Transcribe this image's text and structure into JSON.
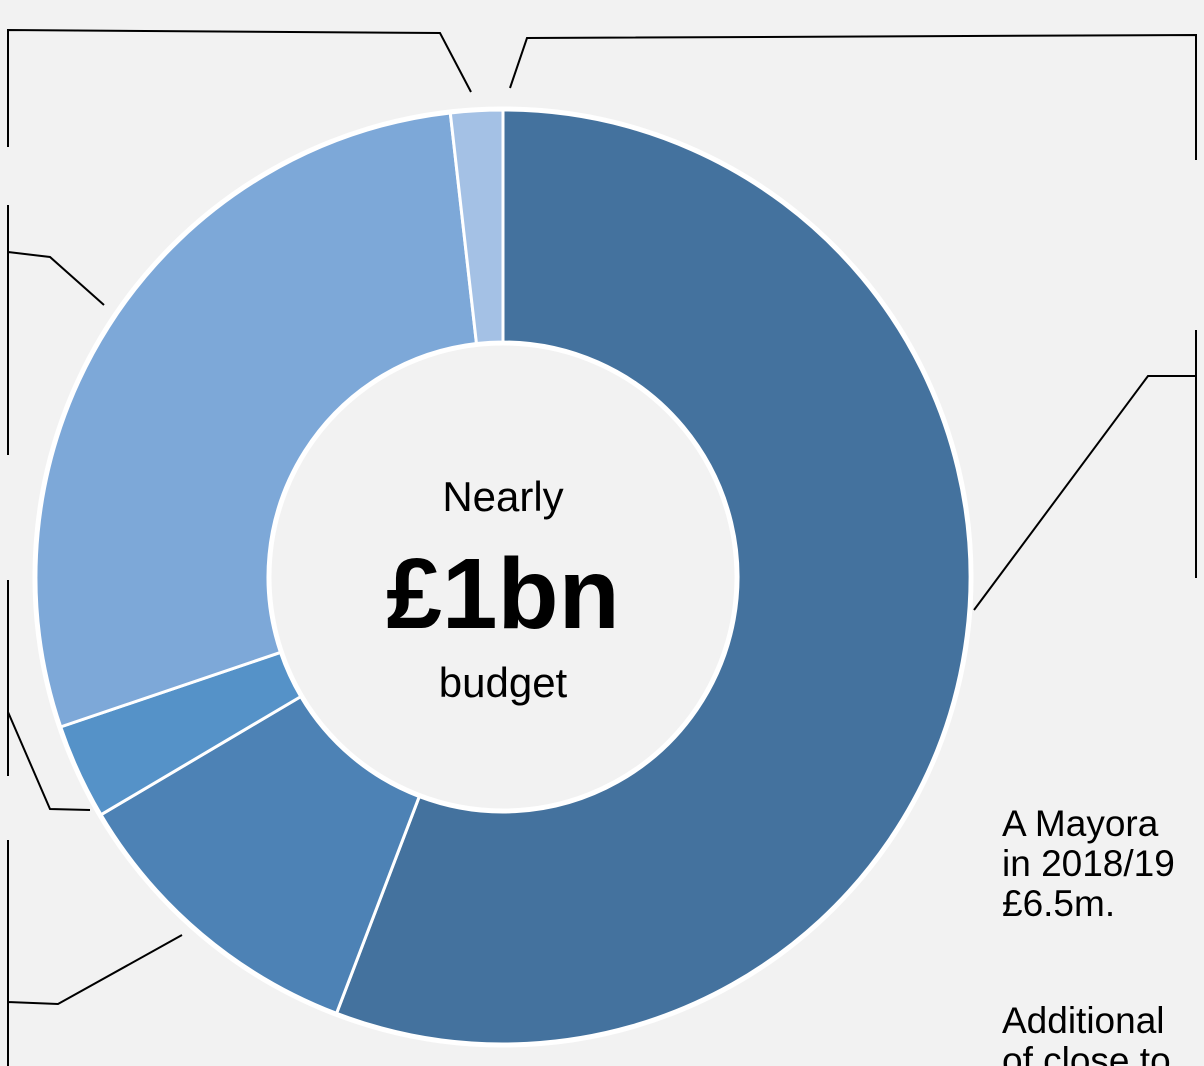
{
  "chart_data": {
    "type": "pie",
    "donut": true,
    "start": "top, clockwise",
    "center_label": {
      "line1": "Nearly",
      "line2": "£1bn",
      "line3": "budget"
    },
    "slices": [
      {
        "value": 55.8,
        "color": "#44729e"
      },
      {
        "value": 10.7,
        "color": "#4d82b5"
      },
      {
        "value": 3.3,
        "color": "#5592c8"
      },
      {
        "value": 28.4,
        "color": "#7da8d8"
      },
      {
        "value": 1.8,
        "color": "#a4c1e5"
      }
    ]
  },
  "notes": {
    "paragraph1_lines": [
      "A Mayora",
      "in 2018/19",
      "£6.5m."
    ],
    "paragraph2_lines": [
      "Additional",
      "of close to"
    ]
  }
}
